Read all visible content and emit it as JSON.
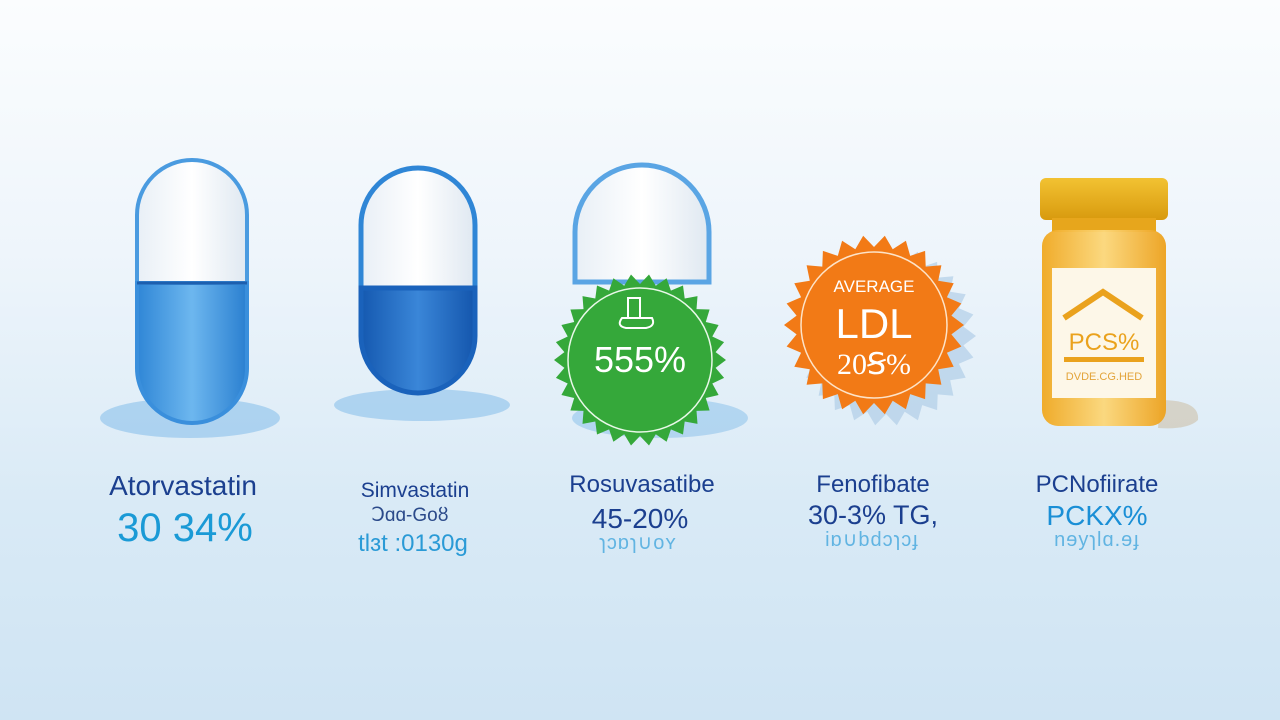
{
  "items": [
    {
      "name": "Atorvastatin",
      "value": "30 34%"
    },
    {
      "name": "Simvastatin",
      "value": "ꓛɑɑ-Goȣ",
      "extra": "tlɜt :0130g"
    },
    {
      "name": "Rosuvasatibe",
      "value": "45-20%",
      "extra": "ɿɔɒɿ∪oʏ",
      "badge": "555%"
    },
    {
      "name": "Fenofibate",
      "value": "30-3% TG,",
      "extra": "iɒ∪bdɔɿɔɟ",
      "badge_lines": [
        "AVERAGE",
        "LDL",
        "20Ꞩ%"
      ]
    },
    {
      "name": "PCNofiirate",
      "value": "PCKX%",
      "extra": "nɘyɿlɑ.ɘɟ",
      "bottle_label": "PCS%",
      "bottle_sub": "DVDE.CG.HED"
    }
  ],
  "colors": {
    "capsule_blue": "#3d95e0",
    "capsule_dark_blue": "#1f6fc7",
    "badge_green": "#35a83a",
    "badge_orange": "#f27a16",
    "bottle_amber": "#f3b830",
    "text_navy": "#1b3f8f",
    "text_cyan": "#1a9ad6"
  }
}
